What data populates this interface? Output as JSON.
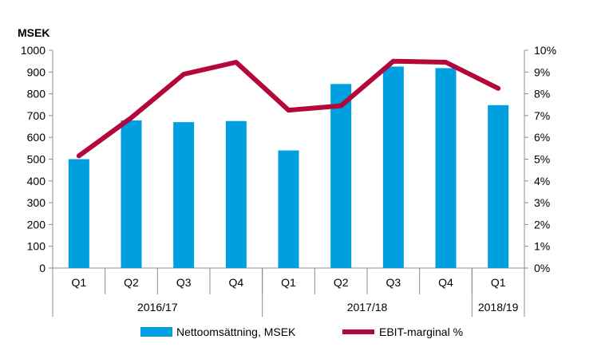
{
  "chart_data": {
    "type": "bar+line",
    "left_axis_label": "MSEK",
    "categories": [
      "Q1",
      "Q2",
      "Q3",
      "Q4",
      "Q1",
      "Q2",
      "Q3",
      "Q4",
      "Q1"
    ],
    "groups": [
      {
        "label": "2016/17",
        "count": 4
      },
      {
        "label": "2017/18",
        "count": 4
      },
      {
        "label": "2018/19",
        "count": 1
      }
    ],
    "series": [
      {
        "name": "Nettoomsättning, MSEK",
        "type": "bar",
        "axis": "left",
        "color": "#009fdf",
        "values": [
          500,
          678,
          670,
          675,
          540,
          845,
          925,
          918,
          748
        ]
      },
      {
        "name": "EBIT-marginal %",
        "type": "line",
        "axis": "right",
        "color": "#b5083a",
        "values": [
          5.15,
          6.9,
          8.9,
          9.45,
          7.25,
          7.45,
          9.5,
          9.45,
          8.25
        ]
      }
    ],
    "left_axis": {
      "ylim": [
        0,
        1000
      ],
      "ticks": [
        0,
        100,
        200,
        300,
        400,
        500,
        600,
        700,
        800,
        900,
        1000
      ],
      "tick_labels": [
        "0",
        "100",
        "200",
        "300",
        "400",
        "500",
        "600",
        "700",
        "800",
        "900",
        "1000"
      ]
    },
    "right_axis": {
      "ylim": [
        0,
        10
      ],
      "ticks": [
        0,
        1,
        2,
        3,
        4,
        5,
        6,
        7,
        8,
        9,
        10
      ],
      "tick_labels": [
        "0%",
        "1%",
        "2%",
        "3%",
        "4%",
        "5%",
        "6%",
        "7%",
        "8%",
        "9%",
        "10%"
      ]
    },
    "grid": false,
    "legend_position": "bottom"
  }
}
